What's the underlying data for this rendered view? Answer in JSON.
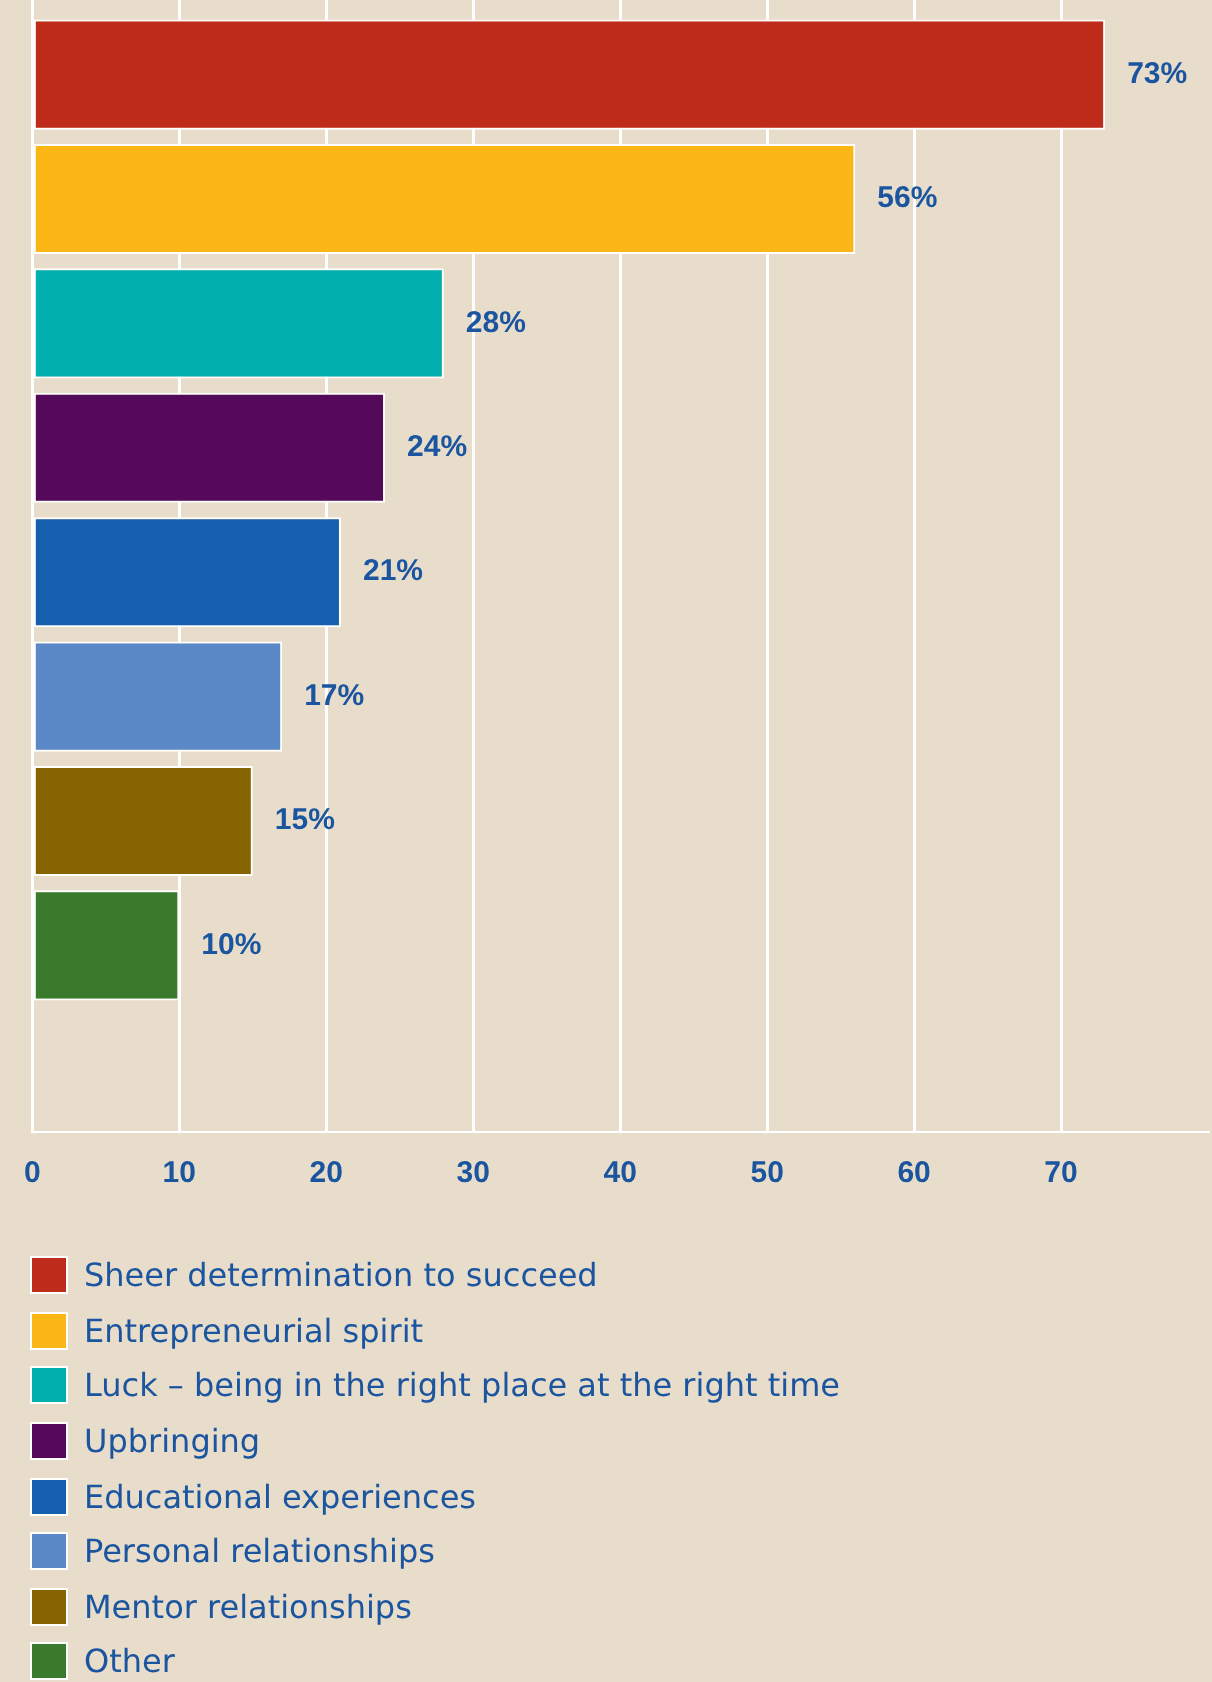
{
  "chart_data": {
    "type": "bar",
    "orientation": "horizontal",
    "categories": [
      null
    ],
    "series": [
      {
        "name": "Sheer determination to succeed",
        "color": "#bf2b1a",
        "values": [
          73
        ],
        "value_labels": [
          "73%"
        ]
      },
      {
        "name": "Entrepreneurial spirit",
        "color": "#fcb717",
        "values": [
          56
        ],
        "value_labels": [
          "56%"
        ]
      },
      {
        "name": "Luck – being in the right place at the right time",
        "color": "#00afae",
        "values": [
          28
        ],
        "value_labels": [
          "28%"
        ]
      },
      {
        "name": "Upbringing",
        "color": "#55095a",
        "values": [
          24
        ],
        "value_labels": [
          "24%"
        ]
      },
      {
        "name": "Educational experiences",
        "color": "#1560ae",
        "values": [
          21
        ],
        "value_labels": [
          "21%"
        ]
      },
      {
        "name": "Personal relationships",
        "color": "#5b89c8",
        "values": [
          17
        ],
        "value_labels": [
          "17%"
        ]
      },
      {
        "name": "Mentor relationships",
        "color": "#866500",
        "values": [
          15
        ],
        "value_labels": [
          "15%"
        ]
      },
      {
        "name": "Other",
        "color": "#397a2d",
        "values": [
          10
        ],
        "value_labels": [
          "10%"
        ]
      }
    ],
    "xlim": [
      0,
      80
    ],
    "xticks": [
      0,
      10,
      20,
      30,
      40,
      50,
      60,
      70
    ],
    "grid": "x",
    "legend": "bottom",
    "tick_labels": "x"
  }
}
